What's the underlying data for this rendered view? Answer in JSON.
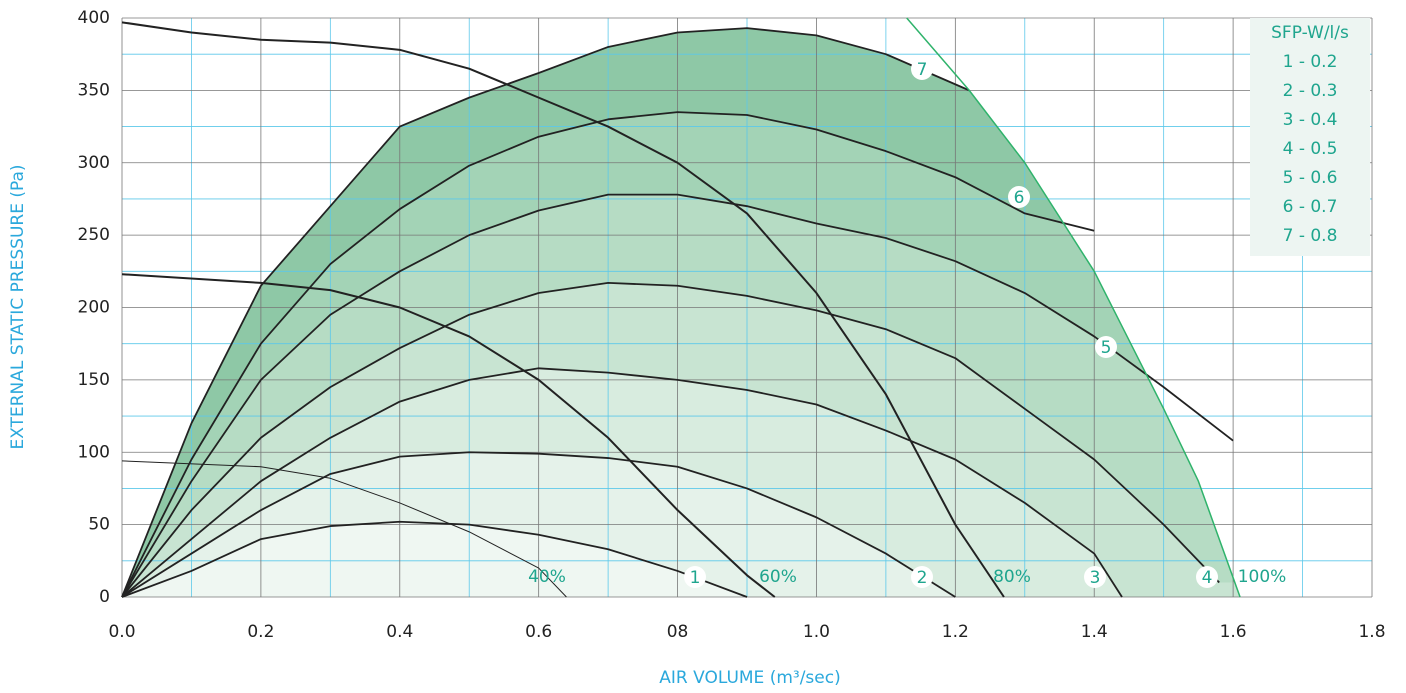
{
  "chart_data": {
    "type": "line",
    "xlabel": "AIR VOLUME (m³/sec)",
    "ylabel": "EXTERNAL STATIC PRESSURE (Pa)",
    "xlim": [
      0,
      1.8
    ],
    "ylim": [
      0,
      400
    ],
    "xticks": [
      {
        "value": 0,
        "label": "0.0"
      },
      0.2,
      0.4,
      0.6,
      {
        "value": 0.8,
        "label": "08"
      },
      {
        "value": 1,
        "label": "1.0"
      },
      1.2,
      1.4,
      1.6,
      1.8
    ],
    "yticks": [
      0,
      50,
      100,
      150,
      200,
      250,
      300,
      350,
      400
    ],
    "minor_xticks": [
      0.1,
      0.3,
      0.5,
      0.7,
      0.9,
      1.1,
      1.3,
      1.5,
      1.7
    ],
    "minor_yticks": [
      25,
      75,
      125,
      175,
      225,
      275,
      325,
      375
    ],
    "grid": true,
    "series": [
      {
        "color": "#222222",
        "fill": "#8ec8a6",
        "x": [
          0,
          0.1,
          0.2,
          0.3,
          0.4,
          0.5,
          0.6,
          0.7,
          0.8,
          0.9,
          1.0,
          1.1,
          1.22
        ],
        "values": [
          0,
          120,
          215,
          270,
          325,
          345,
          362,
          380,
          390,
          393,
          388,
          375,
          350
        ]
      },
      {
        "color": "#222222",
        "fill": "#a3d3b6",
        "x": [
          0,
          0.1,
          0.2,
          0.3,
          0.4,
          0.5,
          0.6,
          0.7,
          0.8,
          0.9,
          1.0,
          1.1,
          1.2,
          1.3,
          1.4
        ],
        "values": [
          0,
          95,
          175,
          230,
          268,
          298,
          318,
          330,
          335,
          333,
          323,
          308,
          290,
          265,
          253
        ]
      },
      {
        "color": "#222222",
        "fill": "#b6dcc4",
        "x": [
          0,
          0.1,
          0.2,
          0.3,
          0.4,
          0.5,
          0.6,
          0.7,
          0.8,
          0.9,
          1.0,
          1.1,
          1.2,
          1.3,
          1.4,
          1.5,
          1.6
        ],
        "values": [
          0,
          80,
          150,
          195,
          225,
          250,
          267,
          278,
          278,
          270,
          258,
          248,
          232,
          210,
          180,
          145,
          108
        ]
      },
      {
        "color": "#222222",
        "fill": "#c8e4d2",
        "x": [
          0,
          0.1,
          0.2,
          0.3,
          0.4,
          0.5,
          0.6,
          0.7,
          0.8,
          0.9,
          1.0,
          1.1,
          1.2,
          1.3,
          1.4,
          1.5,
          1.58
        ],
        "values": [
          0,
          60,
          110,
          145,
          172,
          195,
          210,
          217,
          215,
          208,
          198,
          185,
          165,
          130,
          95,
          50,
          10
        ]
      },
      {
        "color": "#222222",
        "fill": "#d8ecdf",
        "x": [
          0,
          0.1,
          0.2,
          0.3,
          0.4,
          0.5,
          0.6,
          0.7,
          0.8,
          0.9,
          1.0,
          1.1,
          1.2,
          1.3,
          1.4,
          1.44
        ],
        "values": [
          0,
          40,
          80,
          110,
          135,
          150,
          158,
          155,
          150,
          143,
          133,
          115,
          95,
          65,
          30,
          0
        ]
      },
      {
        "color": "#222222",
        "fill": "#e5f2ea",
        "x": [
          0,
          0.1,
          0.2,
          0.3,
          0.4,
          0.5,
          0.6,
          0.7,
          0.8,
          0.9,
          1.0,
          1.1,
          1.2
        ],
        "values": [
          0,
          30,
          60,
          85,
          97,
          100,
          99,
          96,
          90,
          75,
          55,
          30,
          0
        ]
      },
      {
        "color": "#222222",
        "fill": "#eff7f2",
        "x": [
          0,
          0.1,
          0.2,
          0.3,
          0.4,
          0.5,
          0.6,
          0.7,
          0.8,
          0.9
        ],
        "values": [
          0,
          18,
          40,
          49,
          52,
          50,
          43,
          33,
          18,
          0
        ]
      },
      {
        "color": "#222222",
        "line_width": 1,
        "x": [
          0,
          0.2,
          0.3,
          0.4,
          0.5,
          0.6,
          0.64
        ],
        "values": [
          94,
          90,
          82,
          65,
          45,
          20,
          0
        ]
      },
      {
        "color": "#222222",
        "line_width": 2,
        "x": [
          0,
          0.2,
          0.3,
          0.4,
          0.5,
          0.6,
          0.7,
          0.8,
          0.9,
          0.94
        ],
        "values": [
          223,
          217,
          212,
          200,
          180,
          150,
          110,
          60,
          15,
          0
        ]
      },
      {
        "color": "#222222",
        "line_width": 2,
        "x": [
          0,
          0.1,
          0.2,
          0.3,
          0.4,
          0.5,
          0.6,
          0.7,
          0.8,
          0.9,
          1.0,
          1.1,
          1.2,
          1.27
        ],
        "values": [
          397,
          390,
          385,
          383,
          378,
          365,
          345,
          325,
          300,
          265,
          210,
          140,
          50,
          0
        ]
      },
      {
        "color": "#2fb36b",
        "line_width": 1.5,
        "x": [
          1.13,
          1.22,
          1.3,
          1.4,
          1.5,
          1.55,
          1.61
        ],
        "values": [
          400,
          350,
          300,
          225,
          130,
          80,
          0
        ]
      }
    ],
    "annotations": [
      "40%",
      "60%",
      "80%",
      "100%"
    ],
    "curve_labels": [
      "1",
      "2",
      "3",
      "4",
      "5",
      "6",
      "7"
    ],
    "legend": {
      "title": "SFP-W/l/s",
      "entries": [
        "1 - 0.2",
        "2 - 0.3",
        "3 - 0.4",
        "4 - 0.5",
        "5 - 0.6",
        "6 - 0.7",
        "7 - 0.8"
      ]
    }
  }
}
